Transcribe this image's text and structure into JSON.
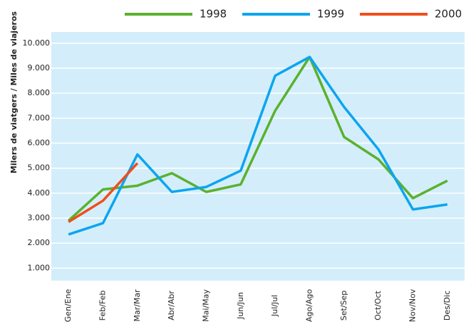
{
  "chart_data": {
    "type": "line",
    "y_label": "Milers de viatgers / Miles de viajeros",
    "categories": [
      "Gen/Ene",
      "Feb/Feb",
      "Mar/Mar",
      "Abr/Abr",
      "Mai/May",
      "Jun/Jun",
      "Jul/Jul",
      "Ago/Ago",
      "Set/Sep",
      "Oct/Oct",
      "Nov/Nov",
      "Des/Dic"
    ],
    "series": [
      {
        "name": "1998",
        "color": "#5bb12f",
        "values": [
          2900,
          4150,
          4300,
          4800,
          4050,
          4350,
          7300,
          9450,
          6250,
          5350,
          3800,
          4500
        ]
      },
      {
        "name": "1999",
        "color": "#0ca5f0",
        "values": [
          2350,
          2800,
          5550,
          4050,
          4250,
          4900,
          8700,
          9450,
          7450,
          5750,
          3350,
          3550
        ]
      },
      {
        "name": "2000",
        "color": "#f04e1c",
        "values": [
          2850,
          3700,
          5200,
          null,
          null,
          null,
          null,
          null,
          null,
          null,
          null,
          null
        ]
      }
    ],
    "ylim": [
      500,
      10450
    ],
    "yticks": [
      {
        "value": 1000,
        "label": "1.000"
      },
      {
        "value": 2000,
        "label": "2.000"
      },
      {
        "value": 3000,
        "label": "3.000"
      },
      {
        "value": 4000,
        "label": "4.000"
      },
      {
        "value": 5000,
        "label": "5.000"
      },
      {
        "value": 6000,
        "label": "6.000"
      },
      {
        "value": 7000,
        "label": "7.000"
      },
      {
        "value": 8000,
        "label": "8.000"
      },
      {
        "value": 9000,
        "label": "9.000"
      },
      {
        "value": 10000,
        "label": "10.000"
      }
    ],
    "grid": true,
    "background": "#d3eefa"
  }
}
